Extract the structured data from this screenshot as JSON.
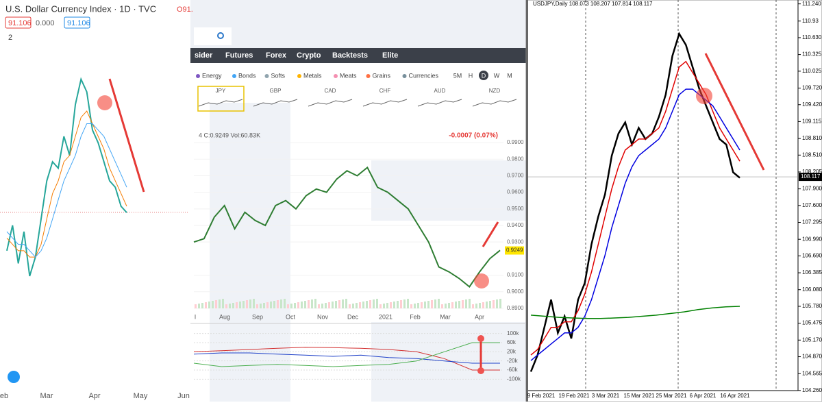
{
  "left": {
    "title": "U.S. Dollar Currency Index · 1D · TVC",
    "quote": "O91.",
    "price_boxes": [
      "91.106",
      "0.000",
      "91.106"
    ],
    "badge": "2",
    "x_labels": [
      "eb",
      "Mar",
      "Apr",
      "May",
      "Jun"
    ],
    "ylim": [
      89.7,
      93.8
    ],
    "series": [
      {
        "color": "#26a69a",
        "values": [
          90.5,
          90.9,
          90.3,
          90.8,
          90.1,
          90.4,
          91.0,
          91.6,
          91.9,
          91.8,
          92.3,
          92.0,
          92.8,
          93.2,
          93.0,
          92.4,
          92.2,
          91.9,
          91.6,
          91.5,
          91.2,
          91.1
        ]
      },
      {
        "color": "#f57c00",
        "values": [
          90.7,
          90.6,
          90.5,
          90.5,
          90.4,
          90.4,
          90.6,
          91.0,
          91.4,
          91.6,
          91.9,
          92.0,
          92.3,
          92.6,
          92.7,
          92.5,
          92.3,
          92.1,
          91.8,
          91.6,
          91.4,
          91.2
        ]
      },
      {
        "color": "#42a5f5",
        "values": [
          90.8,
          90.7,
          90.6,
          90.6,
          90.5,
          90.4,
          90.5,
          90.7,
          91.0,
          91.3,
          91.6,
          91.8,
          92.0,
          92.3,
          92.5,
          92.5,
          92.4,
          92.3,
          92.1,
          91.9,
          91.7,
          91.5
        ]
      }
    ]
  },
  "middle": {
    "tabs": [
      "sider",
      "Futures",
      "Forex",
      "Crypto",
      "Backtests",
      "Elite"
    ],
    "groups": [
      "Energy",
      "Bonds",
      "Softs",
      "Metals",
      "Meats",
      "Grains",
      "Currencies"
    ],
    "timeframes": [
      "5M",
      "H",
      "D",
      "W",
      "M"
    ],
    "thumbnails": [
      "JPY",
      "GBP",
      "CAD",
      "CHF",
      "AUD",
      "NZD"
    ],
    "info": "4  C:0.9249   Vol:60.83K",
    "change": "-0.0007 (0.07%)",
    "last": "0.9249",
    "x_labels": [
      "l",
      "Aug",
      "Sep",
      "Oct",
      "Nov",
      "Dec",
      "2021",
      "Feb",
      "Mar",
      "Apr"
    ],
    "ylim": [
      0.885,
      0.995
    ],
    "yticks": [
      {
        "value": 0.99,
        "label": "0.9900"
      },
      {
        "value": 0.98,
        "label": "0.9800"
      },
      {
        "value": 0.97,
        "label": "0.9700"
      },
      {
        "value": 0.96,
        "label": "0.9600"
      },
      {
        "value": 0.95,
        "label": "0.9500"
      },
      {
        "value": 0.94,
        "label": "0.9400"
      },
      {
        "value": 0.93,
        "label": "0.9300"
      },
      {
        "value": 0.91,
        "label": "0.9100"
      },
      {
        "value": 0.9,
        "label": "0.9000"
      },
      {
        "value": 0.89,
        "label": "0.8900"
      }
    ],
    "price": {
      "color": "#2e7d32",
      "values": [
        0.93,
        0.932,
        0.945,
        0.952,
        0.938,
        0.948,
        0.943,
        0.94,
        0.952,
        0.955,
        0.95,
        0.958,
        0.962,
        0.96,
        0.968,
        0.973,
        0.97,
        0.975,
        0.963,
        0.96,
        0.955,
        0.95,
        0.94,
        0.93,
        0.915,
        0.912,
        0.908,
        0.903,
        0.912,
        0.92,
        0.925
      ]
    },
    "indicator": {
      "ylim": [
        -120000,
        120000
      ],
      "yticks": [
        {
          "value": 100000,
          "label": "100k"
        },
        {
          "value": 60000,
          "label": "60k"
        },
        {
          "value": 20000,
          "label": "20k"
        },
        {
          "value": -20000,
          "label": "-20k"
        },
        {
          "value": -60000,
          "label": "-60k"
        },
        {
          "value": -100000,
          "label": "-100k"
        }
      ],
      "series": [
        {
          "color": "#d32f2f",
          "values": [
            20000,
            25000,
            30000,
            35000,
            40000,
            38000,
            35000,
            30000,
            20000,
            -10000,
            -60000,
            -60000
          ]
        },
        {
          "color": "#1e40c8",
          "values": [
            10000,
            15000,
            15000,
            10000,
            5000,
            0,
            5000,
            -5000,
            -10000,
            -20000,
            -30000,
            -30000
          ]
        },
        {
          "color": "#4caf50",
          "values": [
            -30000,
            -45000,
            -40000,
            -35000,
            -40000,
            -45000,
            -40000,
            -35000,
            -20000,
            20000,
            60000,
            60000
          ]
        }
      ]
    }
  },
  "right": {
    "header": "USDJPY,Daily  108.073 108.207 107.814 108.117",
    "last": "108.117",
    "ylim": [
      104.06,
      111.31
    ],
    "yticks": [
      {
        "value": 111.24,
        "label": "111.240"
      },
      110.93,
      {
        "value": 110.63,
        "label": "110.630"
      },
      110.325,
      110.025,
      {
        "value": 109.72,
        "label": "109.720"
      },
      {
        "value": 109.42,
        "label": "109.420"
      },
      109.115,
      {
        "value": 108.81,
        "label": "108.810"
      },
      {
        "value": 108.51,
        "label": "108.510"
      },
      108.205,
      {
        "value": 107.9,
        "label": "107.900"
      },
      {
        "value": 107.6,
        "label": "107.600"
      },
      107.295,
      {
        "value": 106.99,
        "label": "106.990"
      },
      {
        "value": 106.69,
        "label": "106.690"
      },
      106.385,
      {
        "value": 106.08,
        "label": "106.080"
      },
      {
        "value": 105.78,
        "label": "105.780"
      },
      105.475,
      {
        "value": 105.17,
        "label": "105.170"
      },
      {
        "value": 104.87,
        "label": "104.870"
      },
      104.565,
      {
        "value": 104.26,
        "label": "104.260"
      }
    ],
    "x_labels": [
      "9 Feb 2021",
      "19 Feb 2021",
      "3 Mar 2021",
      "15 Mar 2021",
      "25 Mar 2021",
      "6 Apr 2021",
      "16 Apr 2021"
    ],
    "series": [
      {
        "color": "#000000",
        "values": [
          104.6,
          104.9,
          105.4,
          105.9,
          105.3,
          105.6,
          105.2,
          105.9,
          106.2,
          106.9,
          107.4,
          107.8,
          108.5,
          108.9,
          109.1,
          108.7,
          109.0,
          108.8,
          108.9,
          109.2,
          109.6,
          110.3,
          110.7,
          110.5,
          110.1,
          109.7,
          109.4,
          109.1,
          108.8,
          108.7,
          108.2,
          108.1
        ]
      },
      {
        "color": "#e00000",
        "values": [
          104.9,
          105.0,
          105.2,
          105.4,
          105.4,
          105.5,
          105.5,
          105.7,
          106.0,
          106.4,
          106.9,
          107.4,
          107.9,
          108.3,
          108.6,
          108.7,
          108.8,
          108.8,
          108.9,
          109.0,
          109.3,
          109.7,
          110.1,
          110.2,
          110.0,
          109.8,
          109.6,
          109.3,
          109.0,
          108.8,
          108.6,
          108.4
        ]
      },
      {
        "color": "#0000e0",
        "values": [
          104.8,
          104.9,
          105.0,
          105.1,
          105.2,
          105.3,
          105.3,
          105.4,
          105.6,
          105.9,
          106.3,
          106.7,
          107.2,
          107.6,
          108.0,
          108.3,
          108.5,
          108.6,
          108.7,
          108.8,
          109.0,
          109.3,
          109.6,
          109.7,
          109.7,
          109.6,
          109.5,
          109.4,
          109.2,
          109.0,
          108.8,
          108.6
        ]
      },
      {
        "color": "#008000",
        "values": [
          105.62,
          105.6,
          105.58,
          105.57,
          105.56,
          105.56,
          105.57,
          105.58,
          105.6,
          105.62,
          105.65,
          105.68,
          105.72,
          105.75,
          105.77,
          105.78
        ]
      }
    ]
  }
}
